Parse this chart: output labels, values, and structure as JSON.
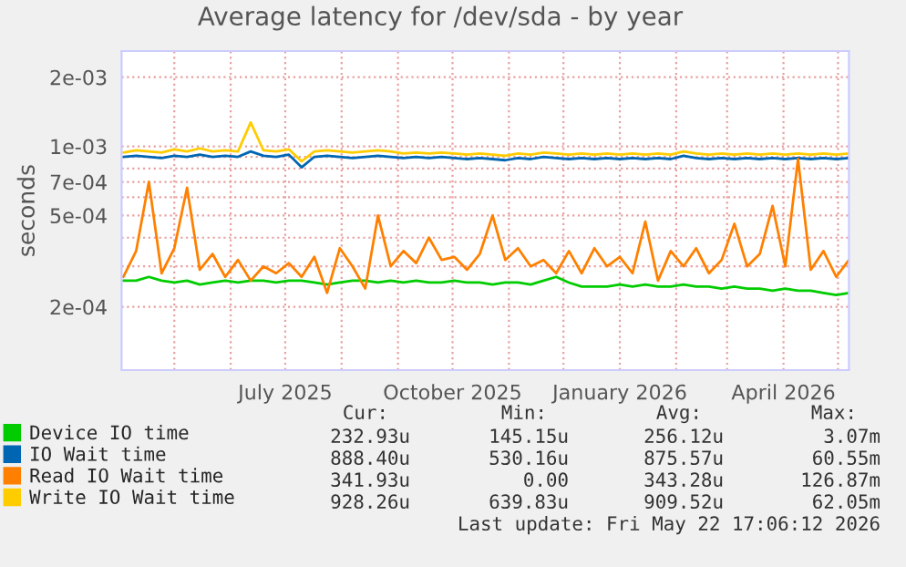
{
  "chart_data": {
    "type": "line",
    "title": "Average latency for /dev/sda - by year",
    "ylabel": "seconds",
    "x": [
      "2025-04-03",
      "2025-04-10",
      "2025-04-17",
      "2025-04-24",
      "2025-05-01",
      "2025-05-08",
      "2025-05-15",
      "2025-05-22",
      "2025-05-29",
      "2025-06-05",
      "2025-06-12",
      "2025-06-19",
      "2025-06-26",
      "2025-07-03",
      "2025-07-10",
      "2025-07-17",
      "2025-07-24",
      "2025-07-31",
      "2025-08-07",
      "2025-08-14",
      "2025-08-21",
      "2025-08-28",
      "2025-09-04",
      "2025-09-11",
      "2025-09-18",
      "2025-09-25",
      "2025-10-02",
      "2025-10-09",
      "2025-10-16",
      "2025-10-23",
      "2025-10-30",
      "2025-11-06",
      "2025-11-13",
      "2025-11-20",
      "2025-11-27",
      "2025-12-04",
      "2025-12-11",
      "2025-12-18",
      "2025-12-25",
      "2026-01-01",
      "2026-01-08",
      "2026-01-15",
      "2026-01-22",
      "2026-01-29",
      "2026-02-05",
      "2026-02-12",
      "2026-02-19",
      "2026-02-26",
      "2026-03-05",
      "2026-03-12",
      "2026-03-19",
      "2026-03-26",
      "2026-04-02",
      "2026-04-09",
      "2026-04-16",
      "2026-04-23",
      "2026-04-30",
      "2026-05-07"
    ],
    "series": [
      {
        "name": "Device IO time",
        "color": "#00cc00",
        "values": [
          0.00026,
          0.00026,
          0.00027,
          0.00026,
          0.000255,
          0.00026,
          0.00025,
          0.000255,
          0.00026,
          0.000255,
          0.00026,
          0.00026,
          0.000255,
          0.00026,
          0.00026,
          0.000255,
          0.00025,
          0.000255,
          0.00026,
          0.00026,
          0.000255,
          0.00026,
          0.000255,
          0.00026,
          0.000255,
          0.000255,
          0.00026,
          0.000255,
          0.000255,
          0.00025,
          0.000255,
          0.000255,
          0.00025,
          0.00026,
          0.00027,
          0.000255,
          0.000245,
          0.000245,
          0.000245,
          0.00025,
          0.000245,
          0.00025,
          0.000245,
          0.000245,
          0.00025,
          0.000245,
          0.000245,
          0.00024,
          0.000245,
          0.00024,
          0.00024,
          0.000235,
          0.00024,
          0.000235,
          0.000235,
          0.00023,
          0.000225,
          0.00023
        ]
      },
      {
        "name": "IO Wait time",
        "color": "#0066b3",
        "values": [
          0.0009,
          0.00091,
          0.0009,
          0.00089,
          0.00091,
          0.0009,
          0.00092,
          0.0009,
          0.00091,
          0.0009,
          0.00095,
          0.00091,
          0.0009,
          0.00092,
          0.00081,
          0.0009,
          0.00091,
          0.0009,
          0.00089,
          0.0009,
          0.00091,
          0.0009,
          0.00089,
          0.0009,
          0.00089,
          0.0009,
          0.00089,
          0.00088,
          0.00089,
          0.00088,
          0.00087,
          0.00089,
          0.00088,
          0.0009,
          0.00089,
          0.00088,
          0.00089,
          0.00088,
          0.00089,
          0.00088,
          0.00089,
          0.00088,
          0.00089,
          0.00088,
          0.00091,
          0.00089,
          0.00088,
          0.00089,
          0.00088,
          0.00089,
          0.00088,
          0.00089,
          0.00088,
          0.00089,
          0.00088,
          0.00089,
          0.00088,
          0.00089
        ]
      },
      {
        "name": "Read IO Wait time",
        "color": "#ff8000",
        "values": [
          0.00027,
          0.00035,
          0.0007,
          0.00028,
          0.00036,
          0.00066,
          0.00029,
          0.00034,
          0.00027,
          0.00032,
          0.00026,
          0.0003,
          0.00028,
          0.00031,
          0.00027,
          0.00033,
          0.00023,
          0.00036,
          0.0003,
          0.00024,
          0.0005,
          0.0003,
          0.00035,
          0.00031,
          0.0004,
          0.00032,
          0.00033,
          0.00029,
          0.00034,
          0.0005,
          0.00032,
          0.00036,
          0.0003,
          0.00032,
          0.00028,
          0.00035,
          0.00028,
          0.00036,
          0.0003,
          0.00033,
          0.00028,
          0.00047,
          0.00026,
          0.00035,
          0.0003,
          0.00036,
          0.00028,
          0.00032,
          0.00046,
          0.0003,
          0.00034,
          0.00055,
          0.0003,
          0.00088,
          0.00029,
          0.00035,
          0.00027,
          0.00032
        ]
      },
      {
        "name": "Write IO Wait time",
        "color": "#ffcc00",
        "values": [
          0.00094,
          0.00096,
          0.00095,
          0.00094,
          0.00097,
          0.00095,
          0.00098,
          0.00095,
          0.00096,
          0.00095,
          0.00127,
          0.00096,
          0.00095,
          0.00097,
          0.00086,
          0.00095,
          0.00096,
          0.00095,
          0.00094,
          0.00095,
          0.00096,
          0.00095,
          0.00093,
          0.00094,
          0.00093,
          0.00094,
          0.00093,
          0.00092,
          0.00093,
          0.00092,
          0.00091,
          0.00093,
          0.00092,
          0.00094,
          0.00093,
          0.00092,
          0.00093,
          0.00092,
          0.00093,
          0.00092,
          0.00093,
          0.00092,
          0.00093,
          0.00092,
          0.00095,
          0.00093,
          0.00092,
          0.00093,
          0.00092,
          0.00093,
          0.00092,
          0.00093,
          0.00092,
          0.00093,
          0.00092,
          0.00093,
          0.00092,
          0.00093
        ]
      }
    ],
    "log": true,
    "ylim": [
      0.000106,
      0.0026
    ],
    "yticks": [
      {
        "value": 0.0002,
        "label": "2e-04"
      },
      {
        "value": 0.0003,
        "label": null
      },
      {
        "value": 0.0004,
        "label": null
      },
      {
        "value": 0.0005,
        "label": "5e-04"
      },
      {
        "value": 0.0006,
        "label": null
      },
      {
        "value": 0.0007,
        "label": "7e-04"
      },
      {
        "value": 0.0008,
        "label": null
      },
      {
        "value": 0.0009,
        "label": null
      },
      {
        "value": 0.001,
        "label": "1e-03"
      },
      {
        "value": 0.002,
        "label": "2e-03"
      }
    ],
    "xlim": [
      "2025-04-02",
      "2026-05-07"
    ],
    "xticks": [
      {
        "value": "2025-05-01",
        "label": null
      },
      {
        "value": "2025-06-01",
        "label": null
      },
      {
        "value": "2025-07-01",
        "label": "July 2025"
      },
      {
        "value": "2025-08-01",
        "label": null
      },
      {
        "value": "2025-09-01",
        "label": null
      },
      {
        "value": "2025-10-01",
        "label": "October 2025"
      },
      {
        "value": "2025-11-01",
        "label": null
      },
      {
        "value": "2025-12-01",
        "label": null
      },
      {
        "value": "2026-01-01",
        "label": "January 2026"
      },
      {
        "value": "2026-02-01",
        "label": null
      },
      {
        "value": "2026-03-01",
        "label": null
      },
      {
        "value": "2026-04-01",
        "label": "April 2026"
      },
      {
        "value": "2026-05-01",
        "label": null
      }
    ],
    "grid": true,
    "legend": "bottom",
    "line_style": "solid",
    "marker": "none",
    "annotations": [
      "Cur:",
      "Min:",
      "Avg:",
      "Max:",
      "232.93u",
      "145.15u",
      "256.12u",
      "3.07m",
      "888.40u",
      "530.16u",
      "875.57u",
      "60.55m",
      "341.93u",
      "0.00",
      "343.28u",
      "126.87m",
      "928.26u",
      "639.83u",
      "909.52u",
      "62.05m",
      "Last update: Fri May 22 17:06:12 2026"
    ]
  }
}
